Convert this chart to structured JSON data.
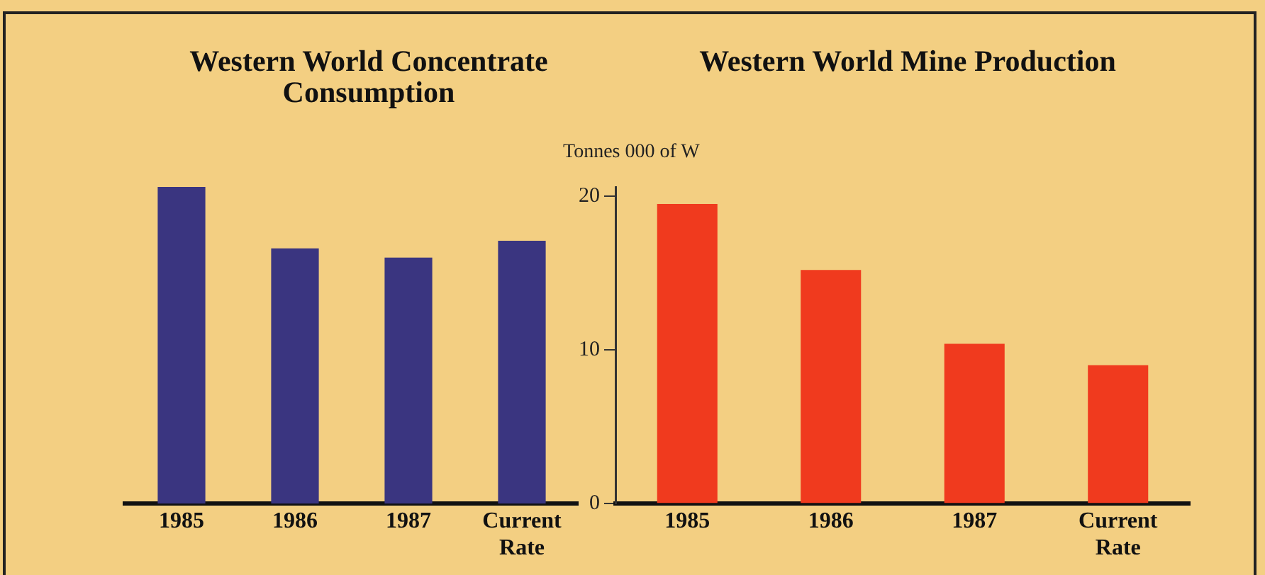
{
  "chart_data": [
    {
      "type": "bar",
      "title": "Western World Concentrate Consumption",
      "categories": [
        "1985",
        "1986",
        "1987",
        "Current Rate"
      ],
      "values": [
        20.6,
        16.6,
        16.0,
        17.1
      ],
      "color": "#3a3580",
      "ylim": [
        0,
        20.6
      ],
      "yticks": [
        0,
        10,
        20
      ],
      "tick_labels": "x",
      "grid": false,
      "legend": false
    },
    {
      "type": "bar",
      "title": "Western World Mine Production",
      "ylabel": "Tonnes 000 of W",
      "categories": [
        "1985",
        "1986",
        "1987",
        "Current Rate"
      ],
      "values": [
        19.5,
        15.2,
        10.4,
        9.0
      ],
      "color": "#f03a1e",
      "ylim": [
        0,
        20.6
      ],
      "yticks": [
        0,
        10,
        20
      ],
      "grid": false,
      "legend": false
    }
  ]
}
